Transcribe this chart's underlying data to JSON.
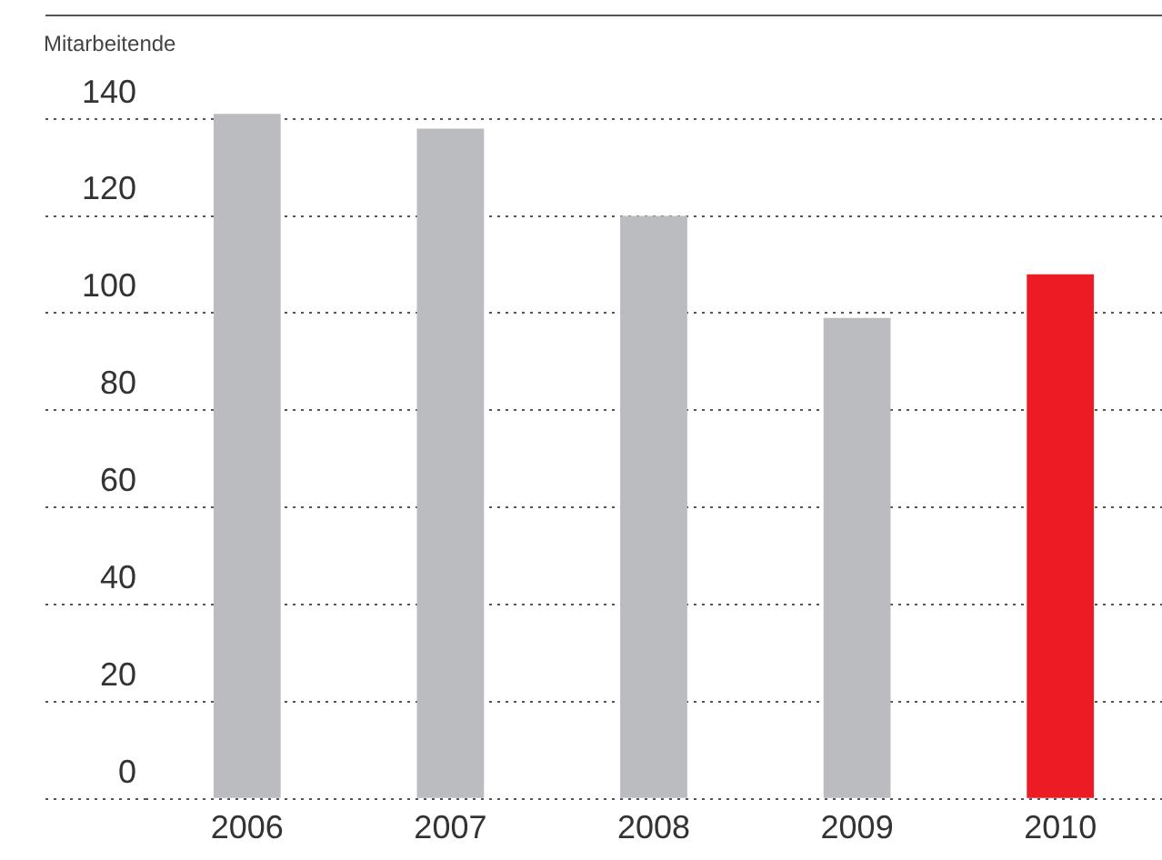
{
  "chart_data": {
    "type": "bar",
    "ylabel": "Mitarbeitende",
    "categories": [
      "2006",
      "2007",
      "2008",
      "2009",
      "2010"
    ],
    "values": [
      141,
      138,
      120,
      99,
      108
    ],
    "colors": [
      "#bbbcc0",
      "#bbbcc0",
      "#bbbcc0",
      "#bbbcc0",
      "#ed1c24"
    ],
    "ylim": [
      0,
      142
    ],
    "yticks": [
      0,
      20,
      40,
      60,
      80,
      100,
      120,
      140
    ],
    "grid": "y",
    "legend": false
  }
}
